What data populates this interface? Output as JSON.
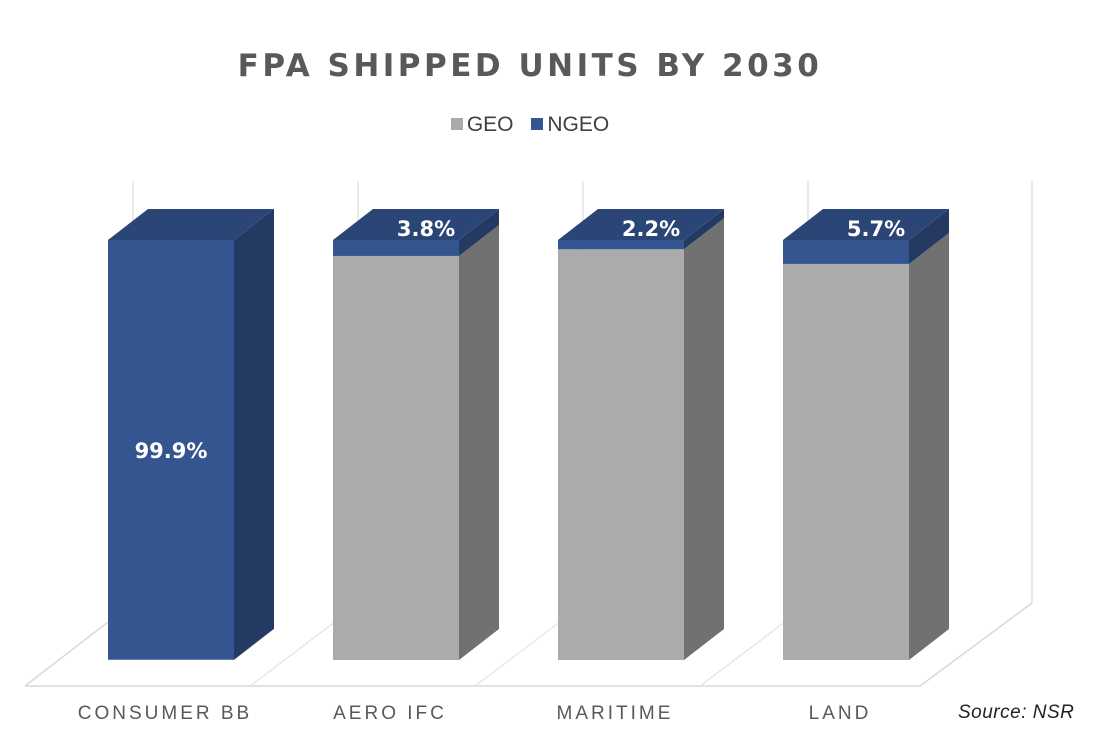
{
  "chart_data": {
    "type": "bar",
    "stacked": true,
    "three_d": true,
    "title": "FPA SHIPPED UNITS BY 2030",
    "categories": [
      "CONSUMER BB",
      "AERO IFC",
      "MARITIME",
      "LAND"
    ],
    "series": [
      {
        "name": "GEO",
        "values": [
          0.1,
          96.2,
          97.8,
          94.3
        ],
        "color": "#ababab"
      },
      {
        "name": "NGEO",
        "values": [
          99.9,
          3.8,
          2.2,
          5.7
        ],
        "color": "#355590"
      }
    ],
    "data_labels": [
      "99.9%",
      "3.8%",
      "2.2%",
      "5.7%"
    ],
    "ylim": [
      0,
      100
    ],
    "legend_position": "top",
    "grid": false
  },
  "source": "Source: NSR"
}
